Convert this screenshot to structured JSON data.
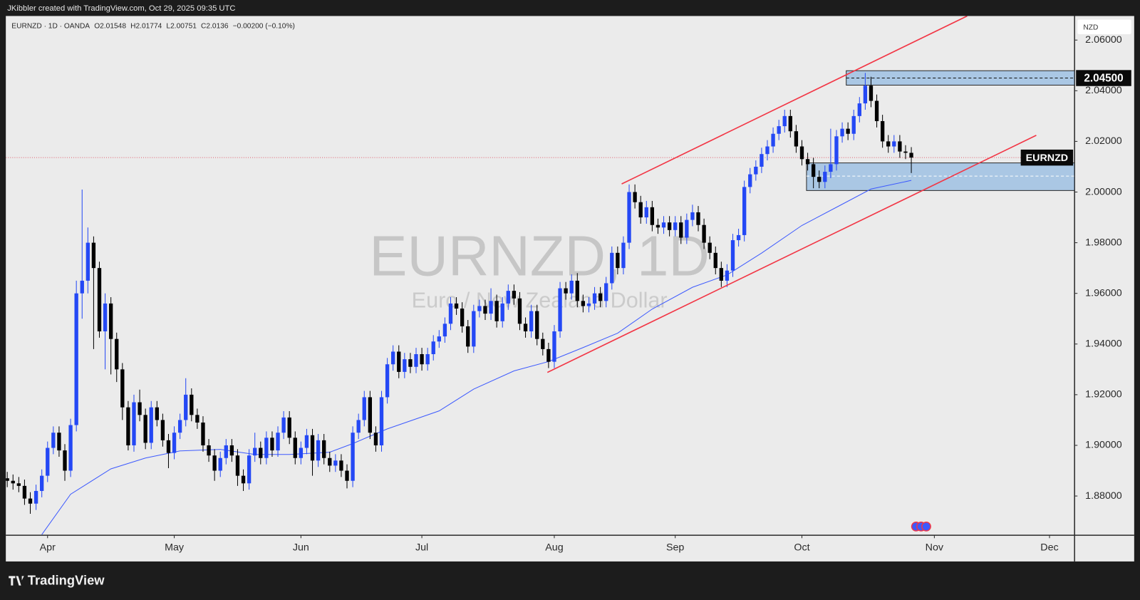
{
  "header": "JKibbler created with TradingView.com, Oct 29, 2025 09:35 UTC",
  "footer": "TradingView",
  "chart_data": {
    "type": "candlestick",
    "symbol": "EURNZD · 1D · OANDA",
    "ohlc_labels": [
      "O",
      "H",
      "L",
      "C"
    ],
    "change": "−0.00200 (−0.10%)",
    "watermark": "EURNZD, 1D",
    "watermark_subtitle": "Euro / New Zealand Dollar",
    "currency": "NZD",
    "symbol_tag": "EURNZD",
    "up_color": "#2448f5",
    "down_color": "#000000",
    "grid": false,
    "xlim": [
      -0.25,
      185.35
    ],
    "ylim": [
      1.8645,
      2.0695
    ],
    "xticks": [
      {
        "value": 7,
        "label": "Apr"
      },
      {
        "value": 29,
        "label": "May"
      },
      {
        "value": 51,
        "label": "Jun"
      },
      {
        "value": 72,
        "label": "Jul"
      },
      {
        "value": 95,
        "label": "Aug"
      },
      {
        "value": 116,
        "label": "Sep"
      },
      {
        "value": 138,
        "label": "Oct"
      },
      {
        "value": 161,
        "label": "Nov"
      },
      {
        "value": 181,
        "label": "Dec"
      }
    ],
    "yticks": [
      {
        "value": 2.06,
        "label": "2.06000"
      },
      {
        "value": 2.04,
        "label": "2.04000"
      },
      {
        "value": 2.02,
        "label": "2.02000"
      },
      {
        "value": 2.0,
        "label": "2.00000"
      },
      {
        "value": 1.98,
        "label": "1.98000"
      },
      {
        "value": 1.96,
        "label": "1.96000"
      },
      {
        "value": 1.94,
        "label": "1.94000"
      },
      {
        "value": 1.92,
        "label": "1.92000"
      },
      {
        "value": 1.9,
        "label": "1.90000"
      },
      {
        "value": 1.88,
        "label": "1.88000"
      }
    ],
    "candles": [
      [
        1.887,
        1.8895,
        1.8835,
        1.886
      ],
      [
        1.886,
        1.8885,
        1.8825,
        1.885
      ],
      [
        1.885,
        1.8875,
        1.8815,
        1.884
      ],
      [
        1.884,
        1.8865,
        1.8765,
        1.879
      ],
      [
        1.879,
        1.8815,
        1.873,
        1.877
      ],
      [
        1.877,
        1.8845,
        1.8745,
        1.882
      ],
      [
        1.882,
        1.8905,
        1.8795,
        1.888
      ],
      [
        1.888,
        1.9015,
        1.8855,
        1.899
      ],
      [
        1.899,
        1.9075,
        1.8965,
        1.905
      ],
      [
        1.905,
        1.9075,
        1.8955,
        1.898
      ],
      [
        1.898,
        1.9005,
        1.886,
        1.89
      ],
      [
        1.89,
        1.9105,
        1.8875,
        1.908
      ],
      [
        1.908,
        1.965,
        1.9055,
        1.96
      ],
      [
        1.96,
        2.001,
        1.95,
        1.965
      ],
      [
        1.965,
        1.986,
        1.96,
        1.98
      ],
      [
        1.98,
        1.9825,
        1.938,
        1.97
      ],
      [
        1.97,
        1.9725,
        1.9425,
        1.945
      ],
      [
        1.945,
        1.96,
        1.93,
        1.956
      ],
      [
        1.956,
        1.9585,
        1.928,
        1.942
      ],
      [
        1.942,
        1.9445,
        1.925,
        1.93
      ],
      [
        1.93,
        1.9325,
        1.91,
        1.915
      ],
      [
        1.915,
        1.9175,
        1.898,
        1.9
      ],
      [
        1.9,
        1.92,
        1.8975,
        1.917
      ],
      [
        1.917,
        1.922,
        1.9095,
        1.912
      ],
      [
        1.912,
        1.9145,
        1.8985,
        1.901
      ],
      [
        1.901,
        1.9175,
        1.8985,
        1.915
      ],
      [
        1.915,
        1.9175,
        1.9075,
        1.91
      ],
      [
        1.91,
        1.9125,
        1.8995,
        1.902
      ],
      [
        1.902,
        1.9045,
        1.891,
        1.897
      ],
      [
        1.897,
        1.9075,
        1.8945,
        1.905
      ],
      [
        1.905,
        1.9125,
        1.9025,
        1.91
      ],
      [
        1.91,
        1.9265,
        1.9075,
        1.92
      ],
      [
        1.92,
        1.9225,
        1.9095,
        1.912
      ],
      [
        1.912,
        1.9145,
        1.9065,
        1.909
      ],
      [
        1.909,
        1.9115,
        1.8975,
        1.9
      ],
      [
        1.9,
        1.9025,
        1.8935,
        1.896
      ],
      [
        1.896,
        1.8985,
        1.886,
        1.89
      ],
      [
        1.89,
        1.8975,
        1.8875,
        1.895
      ],
      [
        1.895,
        1.9025,
        1.8925,
        1.9
      ],
      [
        1.9,
        1.9025,
        1.8935,
        1.896
      ],
      [
        1.896,
        1.8985,
        1.884,
        1.888
      ],
      [
        1.888,
        1.8905,
        1.882,
        1.885
      ],
      [
        1.885,
        1.8985,
        1.8825,
        1.896
      ],
      [
        1.896,
        1.905,
        1.8935,
        1.899
      ],
      [
        1.899,
        1.9015,
        1.8925,
        1.895
      ],
      [
        1.895,
        1.9055,
        1.8925,
        1.903
      ],
      [
        1.903,
        1.9055,
        1.8955,
        1.898
      ],
      [
        1.898,
        1.9075,
        1.8955,
        1.905
      ],
      [
        1.905,
        1.9135,
        1.9025,
        1.911
      ],
      [
        1.911,
        1.9135,
        1.9005,
        1.903
      ],
      [
        1.903,
        1.9055,
        1.8925,
        1.895
      ],
      [
        1.895,
        1.9015,
        1.8925,
        1.899
      ],
      [
        1.899,
        1.9065,
        1.8965,
        1.904
      ],
      [
        1.904,
        1.9065,
        1.888,
        1.894
      ],
      [
        1.894,
        1.9045,
        1.8915,
        1.902
      ],
      [
        1.902,
        1.9045,
        1.8925,
        1.895
      ],
      [
        1.895,
        1.8975,
        1.8895,
        1.892
      ],
      [
        1.892,
        1.8965,
        1.8895,
        1.894
      ],
      [
        1.894,
        1.8965,
        1.8875,
        1.89
      ],
      [
        1.89,
        1.8925,
        1.883,
        1.886
      ],
      [
        1.886,
        1.9075,
        1.8835,
        1.905
      ],
      [
        1.905,
        1.9125,
        1.9025,
        1.91
      ],
      [
        1.91,
        1.9215,
        1.9075,
        1.919
      ],
      [
        1.919,
        1.9215,
        1.9025,
        1.905
      ],
      [
        1.905,
        1.9075,
        1.8975,
        1.9
      ],
      [
        1.9,
        1.9215,
        1.8975,
        1.919
      ],
      [
        1.919,
        1.9345,
        1.9165,
        1.932
      ],
      [
        1.932,
        1.9395,
        1.9295,
        1.937
      ],
      [
        1.937,
        1.9395,
        1.9265,
        1.929
      ],
      [
        1.929,
        1.9365,
        1.9265,
        1.934
      ],
      [
        1.934,
        1.9365,
        1.9285,
        1.931
      ],
      [
        1.931,
        1.9385,
        1.9285,
        1.936
      ],
      [
        1.936,
        1.9385,
        1.9295,
        1.932
      ],
      [
        1.932,
        1.9385,
        1.9295,
        1.936
      ],
      [
        1.936,
        1.9435,
        1.9335,
        1.941
      ],
      [
        1.941,
        1.9455,
        1.9385,
        1.943
      ],
      [
        1.943,
        1.9505,
        1.9405,
        1.948
      ],
      [
        1.948,
        1.9585,
        1.9455,
        1.956
      ],
      [
        1.956,
        1.9585,
        1.9515,
        1.954
      ],
      [
        1.954,
        1.9565,
        1.9445,
        1.947
      ],
      [
        1.947,
        1.9495,
        1.9365,
        1.939
      ],
      [
        1.939,
        1.9555,
        1.9365,
        1.953
      ],
      [
        1.953,
        1.9575,
        1.9505,
        1.955
      ],
      [
        1.955,
        1.9575,
        1.9495,
        1.952
      ],
      [
        1.952,
        1.962,
        1.9495,
        1.957
      ],
      [
        1.957,
        1.9595,
        1.9465,
        1.949
      ],
      [
        1.949,
        1.9585,
        1.9465,
        1.956
      ],
      [
        1.956,
        1.9635,
        1.9535,
        1.961
      ],
      [
        1.961,
        1.9635,
        1.9555,
        1.958
      ],
      [
        1.958,
        1.9605,
        1.9455,
        1.948
      ],
      [
        1.948,
        1.9505,
        1.9425,
        1.945
      ],
      [
        1.945,
        1.9555,
        1.9425,
        1.953
      ],
      [
        1.953,
        1.9555,
        1.9395,
        1.942
      ],
      [
        1.942,
        1.9445,
        1.9355,
        1.938
      ],
      [
        1.938,
        1.9405,
        1.9305,
        1.933
      ],
      [
        1.933,
        1.9475,
        1.9305,
        1.945
      ],
      [
        1.945,
        1.9645,
        1.9425,
        1.962
      ],
      [
        1.962,
        1.9645,
        1.9575,
        1.96
      ],
      [
        1.96,
        1.9675,
        1.9575,
        1.965
      ],
      [
        1.965,
        1.968,
        1.9545,
        1.957
      ],
      [
        1.957,
        1.9595,
        1.9525,
        1.955
      ],
      [
        1.955,
        1.9585,
        1.9525,
        1.956
      ],
      [
        1.956,
        1.9625,
        1.9535,
        1.96
      ],
      [
        1.96,
        1.9625,
        1.9545,
        1.957
      ],
      [
        1.957,
        1.9665,
        1.9545,
        1.964
      ],
      [
        1.964,
        1.9785,
        1.9615,
        1.976
      ],
      [
        1.976,
        1.9785,
        1.9675,
        1.97
      ],
      [
        1.97,
        1.9825,
        1.9675,
        1.98
      ],
      [
        1.98,
        2.003,
        1.9775,
        2.0
      ],
      [
        2.0,
        2.003,
        1.9935,
        1.996
      ],
      [
        1.996,
        1.9985,
        1.9875,
        1.99
      ],
      [
        1.99,
        1.9965,
        1.9875,
        1.994
      ],
      [
        1.994,
        1.9965,
        1.9845,
        1.987
      ],
      [
        1.987,
        1.9895,
        1.9835,
        1.986
      ],
      [
        1.986,
        1.9905,
        1.9835,
        1.988
      ],
      [
        1.988,
        1.9905,
        1.9825,
        1.985
      ],
      [
        1.985,
        1.9905,
        1.9825,
        1.988
      ],
      [
        1.988,
        1.9905,
        1.9795,
        1.982
      ],
      [
        1.982,
        1.9915,
        1.9795,
        1.989
      ],
      [
        1.989,
        1.995,
        1.9865,
        1.992
      ],
      [
        1.992,
        1.9945,
        1.9845,
        1.987
      ],
      [
        1.987,
        1.9895,
        1.9775,
        1.98
      ],
      [
        1.98,
        1.9825,
        1.9735,
        1.976
      ],
      [
        1.976,
        1.9785,
        1.9675,
        1.97
      ],
      [
        1.97,
        1.9725,
        1.9625,
        1.965
      ],
      [
        1.965,
        1.9715,
        1.9625,
        1.969
      ],
      [
        1.969,
        1.9835,
        1.9665,
        1.981
      ],
      [
        1.981,
        1.9855,
        1.9785,
        1.983
      ],
      [
        1.983,
        2.0045,
        1.9805,
        2.002
      ],
      [
        2.002,
        2.0095,
        1.9995,
        2.007
      ],
      [
        2.007,
        2.0125,
        2.0045,
        2.01
      ],
      [
        2.01,
        2.0175,
        2.0075,
        2.015
      ],
      [
        2.015,
        2.0205,
        2.0125,
        2.018
      ],
      [
        2.018,
        2.0255,
        2.0155,
        2.023
      ],
      [
        2.023,
        2.0285,
        2.0205,
        2.026
      ],
      [
        2.026,
        2.0325,
        2.0235,
        2.03
      ],
      [
        2.03,
        2.0325,
        2.0215,
        2.024
      ],
      [
        2.024,
        2.0265,
        2.0155,
        2.018
      ],
      [
        2.018,
        2.0205,
        2.0105,
        2.013
      ],
      [
        2.013,
        2.0155,
        2.0085,
        2.011
      ],
      [
        2.011,
        2.0135,
        2.0015,
        2.006
      ],
      [
        2.006,
        2.0085,
        2.0015,
        2.004
      ],
      [
        2.004,
        2.0105,
        2.0015,
        2.008
      ],
      [
        2.008,
        2.025,
        2.0055,
        2.011
      ],
      [
        2.011,
        2.0245,
        2.0085,
        2.022
      ],
      [
        2.022,
        2.0275,
        2.0195,
        2.025
      ],
      [
        2.025,
        2.0275,
        2.0205,
        2.023
      ],
      [
        2.023,
        2.0325,
        2.0205,
        2.03
      ],
      [
        2.03,
        2.0375,
        2.0275,
        2.035
      ],
      [
        2.035,
        2.047,
        2.0325,
        2.042
      ],
      [
        2.042,
        2.0455,
        2.0335,
        2.036
      ],
      [
        2.036,
        2.0385,
        2.0255,
        2.028
      ],
      [
        2.028,
        2.0305,
        2.0175,
        2.02
      ],
      [
        2.02,
        2.0225,
        2.0155,
        2.018
      ],
      [
        2.018,
        2.0225,
        2.0155,
        2.02
      ],
      [
        2.02,
        2.0225,
        2.0135,
        2.016
      ],
      [
        2.016,
        2.0185,
        2.013,
        2.0155
      ],
      [
        2.01548,
        2.01774,
        2.00751,
        2.0136
      ]
    ],
    "moving_average": {
      "color": "#3d5afe",
      "x": [
        6,
        11,
        18,
        24,
        30,
        37,
        43,
        49,
        56,
        60,
        66,
        75,
        81,
        88,
        94,
        100,
        106,
        112,
        119,
        125,
        131,
        138,
        144,
        150,
        157
      ],
      "values": [
        1.8648,
        1.8807,
        1.8907,
        1.895,
        1.8978,
        1.8984,
        1.8964,
        1.8964,
        1.8973,
        1.9007,
        1.9065,
        1.9136,
        1.9222,
        1.9294,
        1.9331,
        1.9386,
        1.9443,
        1.9538,
        1.9624,
        1.9673,
        1.9759,
        1.9868,
        1.994,
        2.0012,
        2.0046
      ]
    },
    "trendlines": [
      {
        "color": "#f23645",
        "x": [
          106.7,
          166.7
        ],
        "y": [
          2.0032,
          2.0695
        ]
      },
      {
        "color": "#f23645",
        "x": [
          93.8,
          178.7
        ],
        "y": [
          1.9288,
          2.0224
        ]
      }
    ],
    "zones": [
      {
        "x_start": 145.7,
        "top": 2.0479,
        "bottom": 2.0422,
        "level": {
          "value": 2.045,
          "label": "2.04500"
        }
      },
      {
        "x_start": 138.8,
        "top": 2.0115,
        "bottom": 2.0006,
        "level": {
          "value": 2.0063
        }
      }
    ]
  }
}
